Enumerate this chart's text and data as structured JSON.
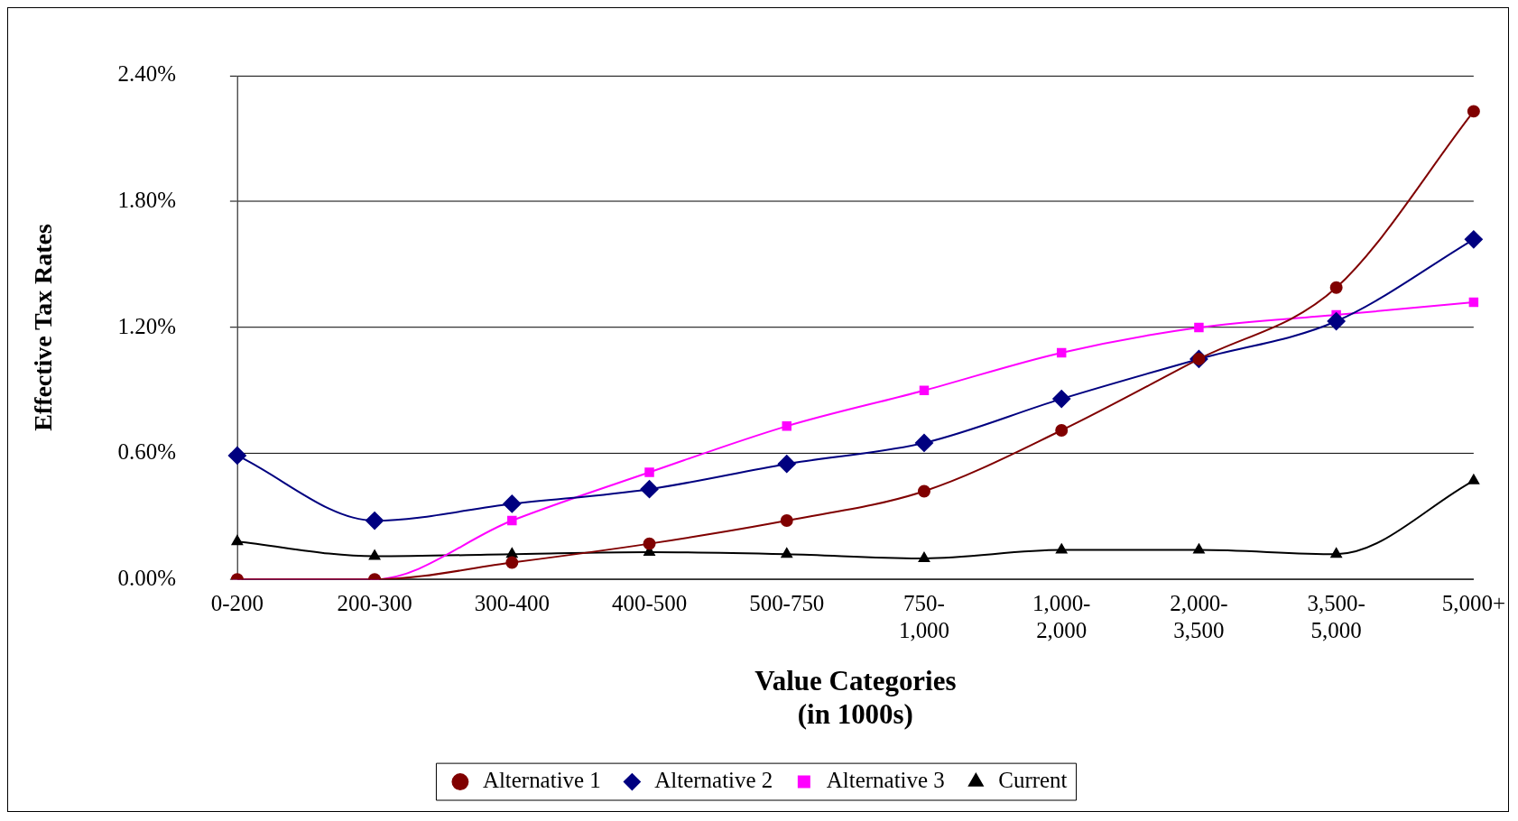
{
  "chart_data": {
    "type": "line",
    "xlabel": "Value Categories (in 1000s)",
    "ylabel": "Effective Tax Rates",
    "categories": [
      "0-200",
      "200-300",
      "300-400",
      "400-500",
      "500-750",
      "750-1,000",
      "1,000-2,000",
      "2,000-3,500",
      "3,500-5,000",
      "5,000+"
    ],
    "series": [
      {
        "name": "Alternative 1",
        "color": "#800000",
        "marker": "circle",
        "values": [
          0.0,
          0.0,
          0.08,
          0.17,
          0.28,
          0.42,
          0.71,
          1.05,
          1.39,
          2.23
        ]
      },
      {
        "name": "Alternative 2",
        "color": "#000080",
        "marker": "diamond",
        "values": [
          0.59,
          0.28,
          0.36,
          0.43,
          0.55,
          0.65,
          0.86,
          1.05,
          1.23,
          1.62
        ]
      },
      {
        "name": "Alternative 3",
        "color": "#ff00ff",
        "marker": "square",
        "values": [
          0.0,
          0.0,
          0.28,
          0.51,
          0.73,
          0.9,
          1.08,
          1.2,
          1.26,
          1.32
        ]
      },
      {
        "name": "Current",
        "color": "#000000",
        "marker": "triangle",
        "values": [
          0.18,
          0.11,
          0.12,
          0.13,
          0.12,
          0.1,
          0.14,
          0.14,
          0.12,
          0.47
        ]
      }
    ],
    "ylim": [
      0,
      2.4
    ],
    "yticks": [
      {
        "value": 0,
        "label": "0.00%"
      },
      {
        "value": 0.6,
        "label": "0.60%"
      },
      {
        "value": 1.2,
        "label": "1.20%"
      },
      {
        "value": 1.8,
        "label": "1.80%"
      },
      {
        "value": 2.4,
        "label": "2.40%"
      }
    ],
    "grid": "y",
    "legend": "bottom"
  }
}
